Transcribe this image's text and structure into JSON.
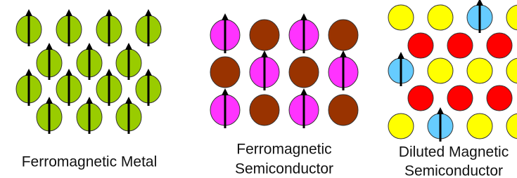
{
  "panels": [
    {
      "label_lines": [
        "Ferromagnetic Metal"
      ]
    },
    {
      "label_lines": [
        "Ferromagnetic",
        "Semiconductor"
      ]
    },
    {
      "label_lines": [
        "Diluted Magnetic",
        "Semiconductor"
      ]
    }
  ]
}
